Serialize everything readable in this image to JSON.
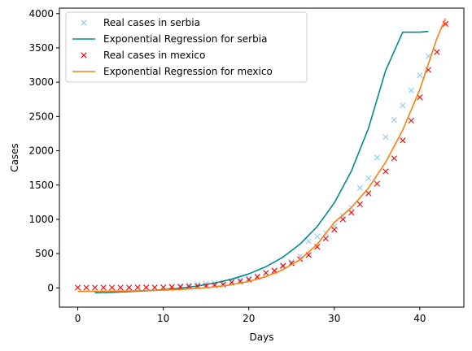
{
  "chart_data": {
    "type": "scatter",
    "title": "",
    "xlabel": "Days",
    "ylabel": "Cases",
    "xlim": [
      -2.15,
      45.15
    ],
    "ylim": [
      -280,
      4080
    ],
    "xticks": [
      0,
      10,
      20,
      30,
      40
    ],
    "yticks": [
      0,
      500,
      1000,
      1500,
      2000,
      2500,
      3000,
      3500,
      4000
    ],
    "grid": false,
    "legend_position": "top-left",
    "series": [
      {
        "name": "Real cases in serbia",
        "kind": "scatter",
        "marker": "x",
        "color": "#87cefa",
        "x": [
          11,
          12,
          13,
          14,
          15,
          16,
          17,
          18,
          19,
          20,
          21,
          22,
          23,
          24,
          25,
          26,
          27,
          28,
          29,
          30,
          31,
          32,
          33,
          34,
          35,
          36,
          37,
          38,
          39,
          40,
          41
        ],
        "y": [
          20,
          30,
          40,
          50,
          60,
          70,
          80,
          100,
          120,
          140,
          170,
          220,
          260,
          330,
          380,
          460,
          680,
          750,
          800,
          900,
          1050,
          1170,
          1460,
          1600,
          1900,
          2200,
          2450,
          2660,
          2880,
          3100,
          3380
        ]
      },
      {
        "name": "Exponential Regression for serbia",
        "kind": "line",
        "color": "#008b8b",
        "x": [
          2,
          4,
          6,
          8,
          10,
          12,
          14,
          16,
          18,
          20,
          22,
          24,
          26,
          28,
          30,
          32,
          34,
          36,
          38,
          40,
          41
        ],
        "y": [
          -70,
          -64,
          -55,
          -43,
          -26,
          -3,
          28,
          71,
          128,
          205,
          309,
          450,
          640,
          895,
          1240,
          1705,
          2330,
          3170,
          3730,
          3730,
          3740
        ]
      },
      {
        "name": "Real cases in mexico",
        "kind": "scatter",
        "marker": "x",
        "color": "#ff0000",
        "x": [
          0,
          1,
          2,
          3,
          4,
          5,
          6,
          7,
          8,
          9,
          10,
          11,
          12,
          13,
          14,
          15,
          16,
          17,
          18,
          19,
          20,
          21,
          22,
          23,
          24,
          25,
          26,
          27,
          28,
          29,
          30,
          31,
          32,
          33,
          34,
          35,
          36,
          37,
          38,
          39,
          40,
          41,
          42,
          43
        ],
        "y": [
          5,
          5,
          5,
          5,
          5,
          5,
          6,
          7,
          7,
          7,
          10,
          12,
          15,
          20,
          25,
          30,
          40,
          50,
          80,
          95,
          120,
          160,
          220,
          250,
          320,
          360,
          420,
          480,
          600,
          720,
          850,
          1000,
          1100,
          1220,
          1380,
          1520,
          1700,
          1890,
          2150,
          2440,
          2780,
          3180,
          3440,
          3850
        ]
      },
      {
        "name": "Exponential Regression for mexico",
        "kind": "line",
        "color": "#ff7f0e",
        "x": [
          0,
          2,
          4,
          6,
          8,
          10,
          12,
          14,
          16,
          18,
          20,
          22,
          24,
          26,
          28,
          30,
          32,
          34,
          36,
          38,
          40,
          42,
          43
        ],
        "y": [
          -50,
          -49,
          -47,
          -44,
          -39,
          -32,
          -22,
          -7,
          15,
          47,
          95,
          165,
          267,
          416,
          635,
          955,
          1173,
          1458,
          1832,
          2302,
          2895,
          3640,
          3930
        ]
      }
    ]
  }
}
